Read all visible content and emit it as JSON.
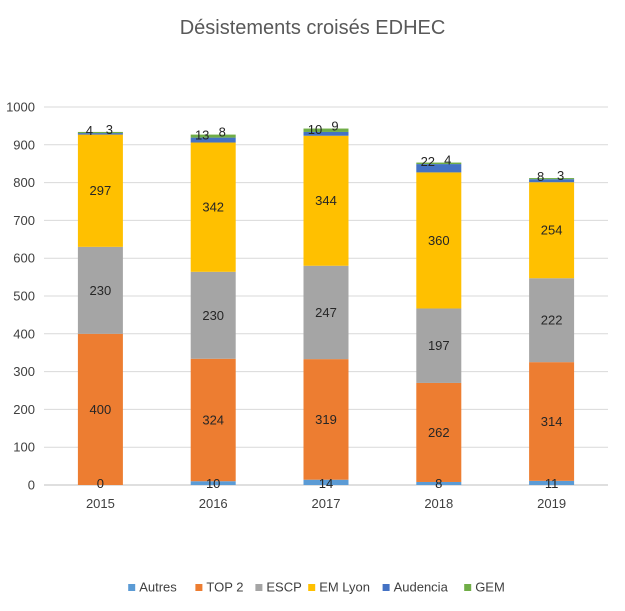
{
  "chart_data": {
    "type": "bar",
    "stacked": true,
    "title": "Désistements croisés EDHEC",
    "xlabel": "",
    "ylabel": "",
    "categories": [
      "2015",
      "2016",
      "2017",
      "2018",
      "2019"
    ],
    "ylim": [
      0,
      1000
    ],
    "yticks": [
      0,
      100,
      200,
      300,
      400,
      500,
      600,
      700,
      800,
      900,
      1000
    ],
    "grid": true,
    "legend_position": "bottom",
    "series": [
      {
        "name": "Autres",
        "color": "#5B9BD5",
        "values": [
          0,
          10,
          14,
          8,
          11
        ]
      },
      {
        "name": "TOP 2",
        "color": "#ED7D31",
        "values": [
          400,
          324,
          319,
          262,
          314
        ]
      },
      {
        "name": "ESCP",
        "color": "#A5A5A5",
        "values": [
          230,
          230,
          247,
          197,
          222
        ]
      },
      {
        "name": "EM Lyon",
        "color": "#FFC000",
        "values": [
          297,
          342,
          344,
          360,
          254
        ]
      },
      {
        "name": "Audencia",
        "color": "#4472C4",
        "values": [
          4,
          13,
          10,
          22,
          8
        ]
      },
      {
        "name": "GEM",
        "color": "#70AD47",
        "values": [
          3,
          8,
          9,
          4,
          3
        ]
      }
    ]
  }
}
